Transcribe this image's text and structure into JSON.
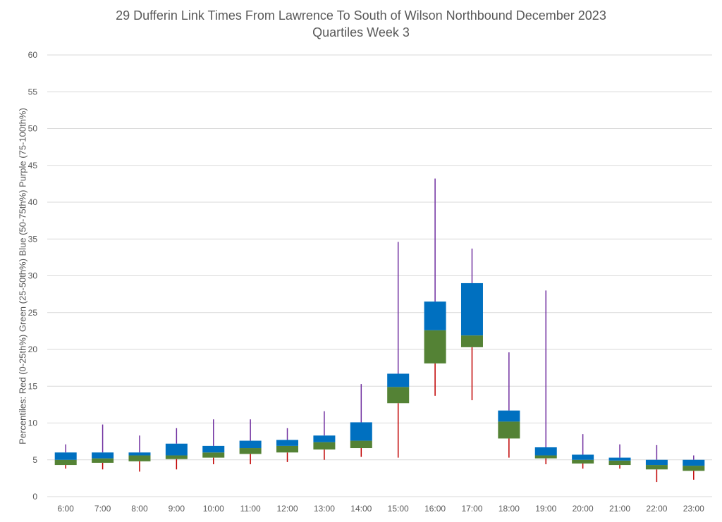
{
  "chart_data": {
    "type": "box",
    "title": [
      "29 Dufferin Link Times From Lawrence To South of Wilson Northbound December 2023",
      "Quartiles Week 3"
    ],
    "ylabel": "Percentiles:  Red (0-25th%)  Green (25-50th%)  Blue (50-75th%)  Purple (75-100th%)",
    "xlabel": "",
    "ylim": [
      0,
      60
    ],
    "yticks": [
      0,
      5,
      10,
      15,
      20,
      25,
      30,
      35,
      40,
      45,
      50,
      55,
      60
    ],
    "grid": true,
    "colors": {
      "lower_whisker": "#c00000",
      "q1_median_box": "#548235",
      "median_q3_box": "#0070c0",
      "upper_whisker": "#7030a0"
    },
    "categories": [
      "6:00",
      "7:00",
      "8:00",
      "9:00",
      "10:00",
      "11:00",
      "12:00",
      "13:00",
      "14:00",
      "15:00",
      "16:00",
      "17:00",
      "18:00",
      "19:00",
      "20:00",
      "21:00",
      "22:00",
      "23:00"
    ],
    "min": [
      3.8,
      3.7,
      3.4,
      3.7,
      4.4,
      4.4,
      4.7,
      5.0,
      5.4,
      5.3,
      13.7,
      13.1,
      5.3,
      4.4,
      3.8,
      3.8,
      2.0,
      2.3
    ],
    "q1": [
      4.3,
      4.6,
      4.8,
      5.1,
      5.3,
      5.8,
      6.0,
      6.4,
      6.6,
      12.7,
      18.1,
      20.3,
      7.9,
      5.2,
      4.5,
      4.3,
      3.7,
      3.5
    ],
    "median": [
      5.0,
      5.2,
      5.6,
      5.6,
      6.0,
      6.6,
      6.9,
      7.4,
      7.6,
      14.9,
      22.6,
      21.9,
      10.2,
      5.6,
      5.0,
      4.9,
      4.3,
      4.2
    ],
    "q3": [
      6.0,
      6.0,
      6.0,
      7.2,
      6.9,
      7.6,
      7.7,
      8.3,
      10.1,
      16.7,
      26.5,
      29.0,
      11.7,
      6.7,
      5.7,
      5.3,
      5.0,
      5.0
    ],
    "max": [
      7.1,
      9.8,
      8.3,
      9.3,
      10.5,
      10.5,
      9.3,
      11.6,
      15.3,
      34.6,
      43.2,
      33.7,
      19.6,
      28.0,
      8.5,
      7.1,
      7.0,
      5.6
    ]
  }
}
